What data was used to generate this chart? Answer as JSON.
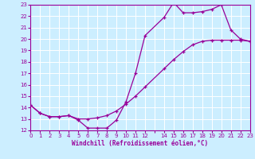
{
  "xlabel": "Windchill (Refroidissement éolien,°C)",
  "bg_color": "#cceeff",
  "grid_color": "#ffffff",
  "line_color": "#990099",
  "ylim": [
    12,
    23
  ],
  "xlim": [
    0,
    23
  ],
  "yticks": [
    12,
    13,
    14,
    15,
    16,
    17,
    18,
    19,
    20,
    21,
    22,
    23
  ],
  "xticks": [
    0,
    1,
    2,
    3,
    4,
    5,
    6,
    7,
    8,
    9,
    10,
    11,
    12,
    13,
    14,
    15,
    16,
    17,
    18,
    19,
    20,
    21,
    22,
    23
  ],
  "xtick_labels": [
    "0",
    "1",
    "2",
    "3",
    "4",
    "5",
    "6",
    "7",
    "8",
    "9",
    "10",
    "11",
    "12",
    "",
    "14",
    "15",
    "16",
    "17",
    "18",
    "19",
    "20",
    "21",
    "22",
    "23"
  ],
  "line1_x": [
    0,
    1,
    2,
    3,
    4,
    5,
    6,
    7,
    8,
    9,
    10,
    11,
    12,
    14,
    15,
    16,
    17,
    18,
    19,
    20,
    21,
    22,
    23
  ],
  "line1_y": [
    14.2,
    13.5,
    13.2,
    13.2,
    13.3,
    12.9,
    12.2,
    12.2,
    12.2,
    12.9,
    14.5,
    17.0,
    20.3,
    21.9,
    23.2,
    22.3,
    22.3,
    22.4,
    22.6,
    23.0,
    20.8,
    20.0,
    19.8
  ],
  "line2_x": [
    0,
    1,
    2,
    3,
    4,
    5,
    6,
    7,
    8,
    9,
    10,
    11,
    12,
    14,
    15,
    16,
    17,
    18,
    19,
    20,
    21,
    22,
    23
  ],
  "line2_y": [
    14.2,
    13.5,
    13.2,
    13.2,
    13.3,
    13.0,
    13.0,
    13.1,
    13.3,
    13.7,
    14.3,
    15.0,
    15.8,
    17.4,
    18.2,
    18.9,
    19.5,
    19.8,
    19.9,
    19.9,
    19.9,
    19.9,
    19.8
  ]
}
